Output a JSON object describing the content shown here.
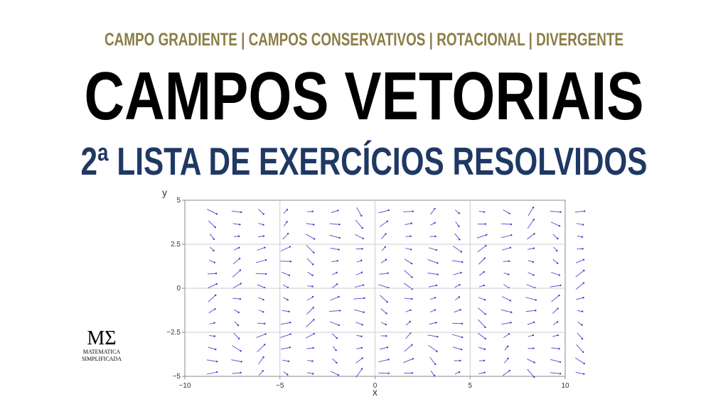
{
  "header": {
    "subtitle": "CAMPO GRADIENTE | CAMPOS CONSERVATIVOS | ROTACIONAL | DIVERGENTE",
    "title": "CAMPOS VETORIAIS",
    "list_title": "2ª LISTA DE EXERCÍCIOS RESOLVIDOS"
  },
  "plot": {
    "x_label": "x",
    "y_label": "y",
    "xlim": [
      -10,
      10
    ],
    "ylim": [
      -5,
      5
    ],
    "xticks": [
      {
        "value": -10,
        "label": "−10"
      },
      {
        "value": -5,
        "label": "−5"
      },
      0,
      5,
      10
    ],
    "yticks": [
      {
        "value": -5,
        "label": "−5"
      },
      {
        "value": -2.5,
        "label": "−2.5"
      },
      0,
      2.5,
      5
    ]
  },
  "logo": {
    "mark": "MΣ",
    "line1": "MATEMATICA",
    "line2": "SIMPLIFICADA"
  }
}
